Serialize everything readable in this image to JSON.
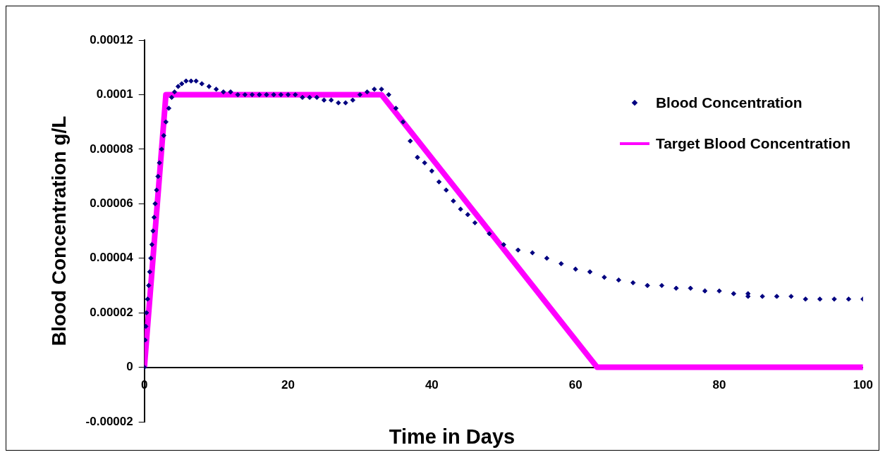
{
  "chart_data": {
    "type": "scatter",
    "xlabel": "Time in Days",
    "ylabel": "Blood Concentration g/L",
    "xlim": [
      0,
      100
    ],
    "xticks": [
      0,
      20,
      40,
      60,
      80,
      100
    ],
    "ylim": [
      -2e-05,
      0.00012
    ],
    "yticks": [
      {
        "value": -2e-05,
        "label": "-0.00002"
      },
      0,
      {
        "value": 2e-05,
        "label": "0.00002"
      },
      {
        "value": 4e-05,
        "label": "0.00004"
      },
      {
        "value": 6e-05,
        "label": "0.00006"
      },
      {
        "value": 8e-05,
        "label": "0.00008"
      },
      {
        "value": 0.0001,
        "label": "0.0001"
      },
      {
        "value": 0.00012,
        "label": "0.00012"
      }
    ],
    "legend": "top right",
    "grid": false,
    "series": [
      {
        "name": "Blood Concentration",
        "type": "scatter",
        "marker": "diamond",
        "color": "#000080",
        "x": [
          0,
          0.1,
          0.2,
          0.3,
          0.45,
          0.6,
          0.75,
          0.9,
          1.05,
          1.2,
          1.35,
          1.5,
          1.7,
          1.9,
          2.1,
          2.4,
          2.7,
          3,
          3.4,
          3.8,
          4.2,
          4.7,
          5.2,
          5.8,
          6.5,
          7.2,
          8,
          9,
          10,
          11,
          12,
          13,
          14,
          15,
          16,
          17,
          18,
          19,
          20,
          21,
          22,
          23,
          24,
          25,
          26,
          27,
          28,
          29,
          30,
          31,
          32,
          33,
          34,
          35,
          36,
          37,
          38,
          39,
          40,
          41,
          42,
          43,
          44,
          45,
          46,
          48,
          50,
          52,
          54,
          56,
          58,
          60,
          62,
          64,
          66,
          68,
          70,
          72,
          74,
          76,
          78,
          80,
          82,
          84,
          84,
          86,
          88,
          90,
          92,
          94,
          96,
          98,
          100
        ],
        "values": [
          0,
          1e-05,
          1.5e-05,
          2e-05,
          2.5e-05,
          3e-05,
          3.5e-05,
          4e-05,
          4.5e-05,
          5e-05,
          5.5e-05,
          6e-05,
          6.5e-05,
          7e-05,
          7.5e-05,
          8e-05,
          8.5e-05,
          9e-05,
          9.5e-05,
          9.9e-05,
          0.000101,
          0.000103,
          0.000104,
          0.000105,
          0.000105,
          0.000105,
          0.000104,
          0.000103,
          0.000102,
          0.000101,
          0.000101,
          0.0001,
          0.0001,
          0.0001,
          0.0001,
          0.0001,
          0.0001,
          0.0001,
          0.0001,
          0.0001,
          9.9e-05,
          9.9e-05,
          9.9e-05,
          9.8e-05,
          9.8e-05,
          9.7e-05,
          9.7e-05,
          9.8e-05,
          0.0001,
          0.000101,
          0.000102,
          0.000102,
          0.0001,
          9.5e-05,
          9e-05,
          8.3e-05,
          7.7e-05,
          7.5e-05,
          7.2e-05,
          6.8e-05,
          6.5e-05,
          6.1e-05,
          5.8e-05,
          5.6e-05,
          5.3e-05,
          4.9e-05,
          4.5e-05,
          4.3e-05,
          4.2e-05,
          4e-05,
          3.8e-05,
          3.6e-05,
          3.5e-05,
          3.3e-05,
          3.2e-05,
          3.1e-05,
          3e-05,
          3e-05,
          2.9e-05,
          2.9e-05,
          2.8e-05,
          2.8e-05,
          2.7e-05,
          2.7e-05,
          2.6e-05,
          2.6e-05,
          2.6e-05,
          2.6e-05,
          2.5e-05,
          2.5e-05,
          2.5e-05,
          2.5e-05,
          2.5e-05
        ]
      },
      {
        "name": "Target Blood Concentration",
        "type": "line",
        "marker": "none",
        "line_style": "solid",
        "color": "#ff00ff",
        "x": [
          0,
          3,
          33,
          63,
          100
        ],
        "values": [
          0,
          0.0001,
          0.0001,
          0,
          0
        ]
      }
    ]
  }
}
